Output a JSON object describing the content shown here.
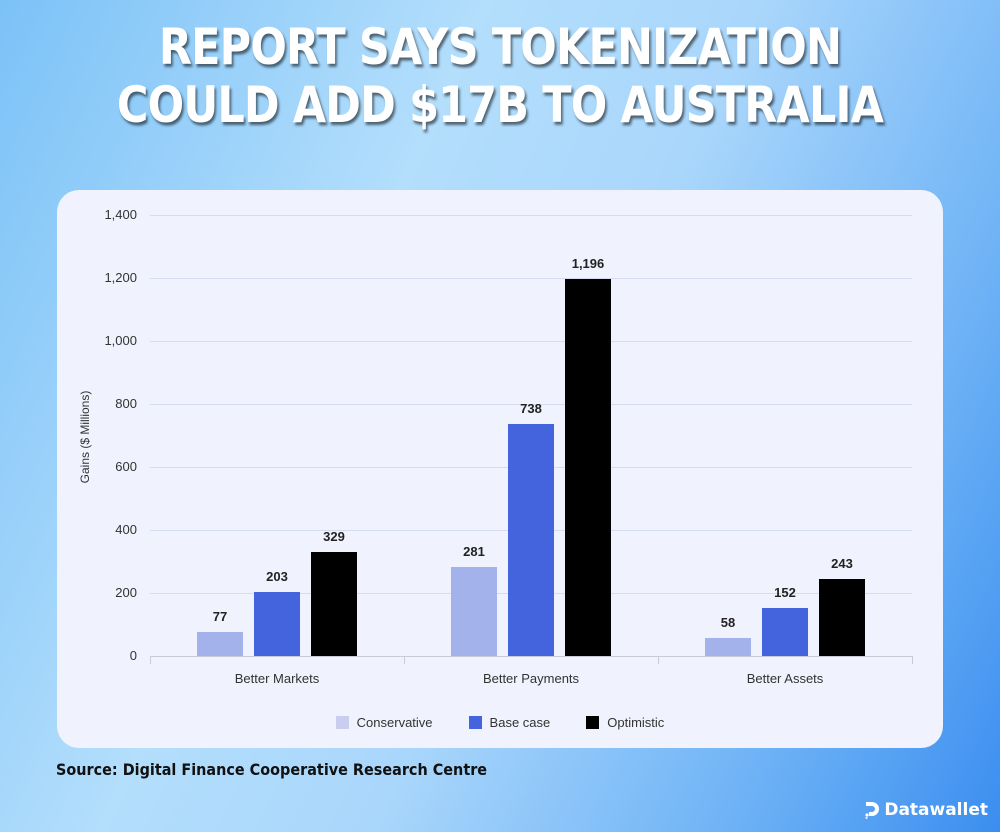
{
  "headline": {
    "line1": "REPORT SAYS TOKENIZATION",
    "line2": "COULD ADD $17B TO AUSTRALIA"
  },
  "source": "Source: Digital Finance Cooperative Research Centre",
  "brand": {
    "name": "Datawallet",
    "icon": "datawallet-logo-icon"
  },
  "colors": {
    "conservative": "#a3b2ea",
    "base_case": "#4364dc",
    "optimistic": "#000000",
    "card_bg": "#f0f2fd",
    "gridline": "#d6dcf0"
  },
  "chart_data": {
    "type": "bar",
    "title": "",
    "xlabel": "",
    "ylabel": "Gains ($ Millions)",
    "ylim": [
      0,
      1400
    ],
    "yticks": [
      "0",
      "200",
      "400",
      "600",
      "800",
      "1,000",
      "1,200",
      "1,400"
    ],
    "grid": true,
    "legend_position": "bottom",
    "categories": [
      "Better Markets",
      "Better Payments",
      "Better Assets"
    ],
    "series": [
      {
        "name": "Conservative",
        "color": "#a3b2ea",
        "values": [
          77,
          281,
          58
        ],
        "labels": [
          "77",
          "281",
          "58"
        ]
      },
      {
        "name": "Base case",
        "color": "#4364dc",
        "values": [
          203,
          738,
          152
        ],
        "labels": [
          "203",
          "738",
          "152"
        ]
      },
      {
        "name": "Optimistic",
        "color": "#000000",
        "values": [
          329,
          1196,
          243
        ],
        "labels": [
          "329",
          "1,196",
          "243"
        ]
      }
    ]
  }
}
